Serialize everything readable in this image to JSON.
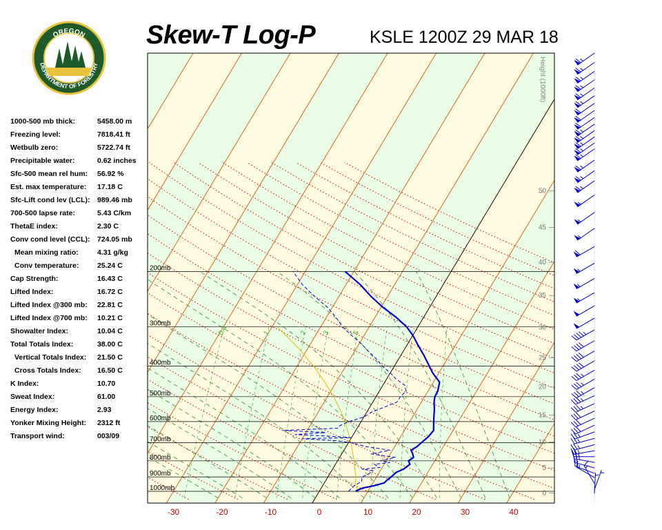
{
  "header": {
    "title": "Skew-T Log-P",
    "station_time": "KSLE 1200Z 29 MAR 18"
  },
  "logo": {
    "top_text": "OREGON",
    "bottom_text": "DEPARTMENT OF FORESTRY",
    "colors": {
      "green": "#1e5a2a",
      "gold": "#e8c23a"
    }
  },
  "indices": [
    {
      "label": "1000-500 mb thick:",
      "value": "5458.00 m"
    },
    {
      "label": "Freezing level:",
      "value": "7818.41 ft"
    },
    {
      "label": "Wetbulb zero:",
      "value": "5722.74 ft"
    },
    {
      "label": "Precipitable water:",
      "value": "0.62 inches"
    },
    {
      "label": "Sfc-500 mean rel hum:",
      "value": "56.92 %"
    },
    {
      "label": "Est. max temperature:",
      "value": "17.18 C"
    },
    {
      "label": "Sfc-Lift cond lev (LCL):",
      "value": "989.46 mb"
    },
    {
      "label": "700-500 lapse rate:",
      "value": "5.43 C/km"
    },
    {
      "label": "ThetaE index:",
      "value": "2.30 C"
    },
    {
      "label": "Conv cond level (CCL):",
      "value": "724.05 mb"
    },
    {
      "label": "Mean mixing ratio:",
      "value": "4.31 g/kg",
      "indent": true
    },
    {
      "label": "Conv temperature:",
      "value": "25.24 C",
      "indent": true
    },
    {
      "label": "Cap Strength:",
      "value": "16.43 C"
    },
    {
      "label": "Lifted Index:",
      "value": "16.72 C"
    },
    {
      "label": "Lifted Index @300 mb:",
      "value": "22.81 C"
    },
    {
      "label": "Lifted Index @700 mb:",
      "value": "10.21 C"
    },
    {
      "label": "Showalter Index:",
      "value": "10.04 C"
    },
    {
      "label": "Total Totals Index:",
      "value": "38.00 C"
    },
    {
      "label": "Vertical Totals Index:",
      "value": "21.50 C",
      "indent": true
    },
    {
      "label": "Cross Totals Index:",
      "value": "16.50 C",
      "indent": true
    },
    {
      "label": "K Index:",
      "value": "10.70"
    },
    {
      "label": "Sweat Index:",
      "value": "61.00"
    },
    {
      "label": "Energy Index:",
      "value": "2.93"
    },
    {
      "label": "Yonker Mixing Height:",
      "value": "2312 ft"
    },
    {
      "label": "Transport wind:",
      "value": "003/09"
    }
  ],
  "chart_data": {
    "type": "skew-t",
    "xlabel": "",
    "ylabel": "",
    "x_ticks": [
      -30,
      -20,
      -10,
      0,
      10,
      20,
      30,
      40
    ],
    "xlim": [
      -35,
      45
    ],
    "pressure_levels": [
      {
        "p": 200,
        "label": "200mb"
      },
      {
        "p": 300,
        "label": "300mb"
      },
      {
        "p": 400,
        "label": "400mb"
      },
      {
        "p": 500,
        "label": "500mb"
      },
      {
        "p": 600,
        "label": "600mb"
      },
      {
        "p": 700,
        "label": "700mb"
      },
      {
        "p": 800,
        "label": "800mb"
      },
      {
        "p": 900,
        "label": "900mb"
      },
      {
        "p": 1000,
        "label": "1000mb"
      }
    ],
    "height_axis": {
      "title": "Height (1000ft)",
      "ticks": [
        0,
        5,
        10,
        15,
        20,
        25,
        30,
        35,
        40,
        45,
        50
      ]
    },
    "mixing_ratio_labels": [
      "0.4",
      "1",
      "2",
      "3",
      "5"
    ],
    "temperature_profile": [
      [
        1000,
        7.5
      ],
      [
        990,
        7.8
      ],
      [
        975,
        8.6
      ],
      [
        960,
        10.5
      ],
      [
        940,
        12.3
      ],
      [
        920,
        12.6
      ],
      [
        900,
        13.0
      ],
      [
        870,
        13.5
      ],
      [
        850,
        14.6
      ],
      [
        820,
        15.3
      ],
      [
        800,
        14.6
      ],
      [
        780,
        15.2
      ],
      [
        760,
        14.6
      ],
      [
        740,
        13.8
      ],
      [
        720,
        14.6
      ],
      [
        700,
        15.0
      ],
      [
        670,
        15.7
      ],
      [
        640,
        16.0
      ],
      [
        610,
        15.2
      ],
      [
        580,
        14.4
      ],
      [
        550,
        13.6
      ],
      [
        520,
        12.6
      ],
      [
        500,
        12.1
      ],
      [
        480,
        12.0
      ],
      [
        450,
        11.3
      ],
      [
        420,
        8.7
      ],
      [
        400,
        7.2
      ],
      [
        370,
        4.8
      ],
      [
        340,
        2.0
      ],
      [
        320,
        0.1
      ],
      [
        300,
        -2.3
      ],
      [
        280,
        -5.6
      ],
      [
        260,
        -9.6
      ],
      [
        240,
        -13.4
      ],
      [
        220,
        -17.1
      ],
      [
        200,
        -21.8
      ]
    ],
    "dewpoint_profile": [
      [
        1000,
        6.0
      ],
      [
        960,
        6.5
      ],
      [
        930,
        7.5
      ],
      [
        900,
        7.0
      ],
      [
        880,
        8.0
      ],
      [
        860,
        8.5
      ],
      [
        850,
        6.0
      ],
      [
        840,
        9.5
      ],
      [
        820,
        8.0
      ],
      [
        810,
        11.0
      ],
      [
        800,
        8.8
      ],
      [
        780,
        11.5
      ],
      [
        760,
        6.0
      ],
      [
        740,
        9.5
      ],
      [
        720,
        4.0
      ],
      [
        700,
        0.5
      ],
      [
        690,
        -3.0
      ],
      [
        680,
        -10.0
      ],
      [
        675,
        0.0
      ],
      [
        670,
        -3.0
      ],
      [
        660,
        -12.0
      ],
      [
        650,
        -6.0
      ],
      [
        640,
        -15.0
      ],
      [
        630,
        -4.0
      ],
      [
        620,
        -4.0
      ],
      [
        600,
        -2.5
      ],
      [
        580,
        0.0
      ],
      [
        560,
        1.0
      ],
      [
        540,
        3.0
      ],
      [
        520,
        5.0
      ],
      [
        500,
        5.0
      ],
      [
        480,
        5.5
      ],
      [
        460,
        4.5
      ],
      [
        440,
        2.0
      ],
      [
        420,
        0.0
      ],
      [
        400,
        -2.5
      ],
      [
        380,
        -4.5
      ],
      [
        360,
        -7.0
      ],
      [
        340,
        -9.5
      ],
      [
        320,
        -12.5
      ],
      [
        300,
        -15.5
      ],
      [
        280,
        -18.0
      ],
      [
        260,
        -21.0
      ],
      [
        240,
        -25.0
      ],
      [
        220,
        -29.0
      ],
      [
        200,
        -32.5
      ]
    ],
    "parcel_profile": [
      [
        990,
        7.8
      ],
      [
        950,
        6.5
      ],
      [
        900,
        5.8
      ],
      [
        850,
        4.6
      ],
      [
        800,
        3.4
      ],
      [
        750,
        2.0
      ],
      [
        700,
        0.5
      ],
      [
        650,
        -1.3
      ],
      [
        600,
        -3.3
      ],
      [
        550,
        -5.8
      ],
      [
        500,
        -8.7
      ],
      [
        450,
        -12.3
      ],
      [
        400,
        -16.6
      ],
      [
        350,
        -22.0
      ],
      [
        300,
        -28.9
      ]
    ],
    "wind_barbs": [
      {
        "p": 1000,
        "dir": 3,
        "spd": 9
      },
      {
        "p": 980,
        "dir": 20,
        "spd": 5
      },
      {
        "p": 950,
        "dir": 330,
        "spd": 15
      },
      {
        "p": 920,
        "dir": 300,
        "spd": 15
      },
      {
        "p": 900,
        "dir": 290,
        "spd": 15
      },
      {
        "p": 875,
        "dir": 285,
        "spd": 20
      },
      {
        "p": 850,
        "dir": 280,
        "spd": 25
      },
      {
        "p": 825,
        "dir": 270,
        "spd": 25
      },
      {
        "p": 800,
        "dir": 260,
        "spd": 25
      },
      {
        "p": 775,
        "dir": 255,
        "spd": 25
      },
      {
        "p": 750,
        "dir": 255,
        "spd": 25
      },
      {
        "p": 725,
        "dir": 250,
        "spd": 25
      },
      {
        "p": 700,
        "dir": 245,
        "spd": 30
      },
      {
        "p": 675,
        "dir": 245,
        "spd": 30
      },
      {
        "p": 650,
        "dir": 245,
        "spd": 30
      },
      {
        "p": 625,
        "dir": 245,
        "spd": 35
      },
      {
        "p": 600,
        "dir": 245,
        "spd": 35
      },
      {
        "p": 575,
        "dir": 240,
        "spd": 35
      },
      {
        "p": 550,
        "dir": 240,
        "spd": 35
      },
      {
        "p": 525,
        "dir": 240,
        "spd": 35
      },
      {
        "p": 500,
        "dir": 240,
        "spd": 40
      },
      {
        "p": 475,
        "dir": 240,
        "spd": 40
      },
      {
        "p": 450,
        "dir": 240,
        "spd": 40
      },
      {
        "p": 425,
        "dir": 240,
        "spd": 45
      },
      {
        "p": 400,
        "dir": 240,
        "spd": 50
      },
      {
        "p": 375,
        "dir": 240,
        "spd": 50
      },
      {
        "p": 350,
        "dir": 240,
        "spd": 55
      },
      {
        "p": 325,
        "dir": 240,
        "spd": 55
      },
      {
        "p": 300,
        "dir": 240,
        "spd": 55
      },
      {
        "p": 275,
        "dir": 240,
        "spd": 60
      },
      {
        "p": 250,
        "dir": 235,
        "spd": 55
      },
      {
        "p": 230,
        "dir": 235,
        "spd": 55
      },
      {
        "p": 210,
        "dir": 235,
        "spd": 55
      },
      {
        "p": 195,
        "dir": 235,
        "spd": 65
      },
      {
        "p": 185,
        "dir": 235,
        "spd": 65
      },
      {
        "p": 175,
        "dir": 235,
        "spd": 65
      },
      {
        "p": 165,
        "dir": 235,
        "spd": 65
      },
      {
        "p": 160,
        "dir": 235,
        "spd": 65
      },
      {
        "p": 155,
        "dir": 235,
        "spd": 65
      },
      {
        "p": 150,
        "dir": 235,
        "spd": 65
      },
      {
        "p": 145,
        "dir": 235,
        "spd": 65
      },
      {
        "p": 140,
        "dir": 235,
        "spd": 60
      },
      {
        "p": 135,
        "dir": 235,
        "spd": 60
      },
      {
        "p": 130,
        "dir": 235,
        "spd": 60
      },
      {
        "p": 125,
        "dir": 235,
        "spd": 65
      },
      {
        "p": 120,
        "dir": 235,
        "spd": 65
      },
      {
        "p": 115,
        "dir": 235,
        "spd": 65
      },
      {
        "p": 110,
        "dir": 235,
        "spd": 65
      },
      {
        "p": 105,
        "dir": 235,
        "spd": 65
      },
      {
        "p": 100,
        "dir": 235,
        "spd": 65
      }
    ],
    "colors": {
      "temperature": "#0000cc",
      "dewpoint": "#0000cc",
      "parcel": "#e0c000",
      "isotherm": "#d2691e",
      "dry_adiabat": "#cc0000",
      "moist_adiabat": "#2e8b2e",
      "mixing_ratio": "#3cb43c",
      "isobar": "#000000",
      "band_yellow": "#fffbe0",
      "band_green": "#eafbe6",
      "x_tick_negative": "#cc0000",
      "x_tick_positive": "#cc0000",
      "wind_barb": "#0000cc"
    }
  }
}
